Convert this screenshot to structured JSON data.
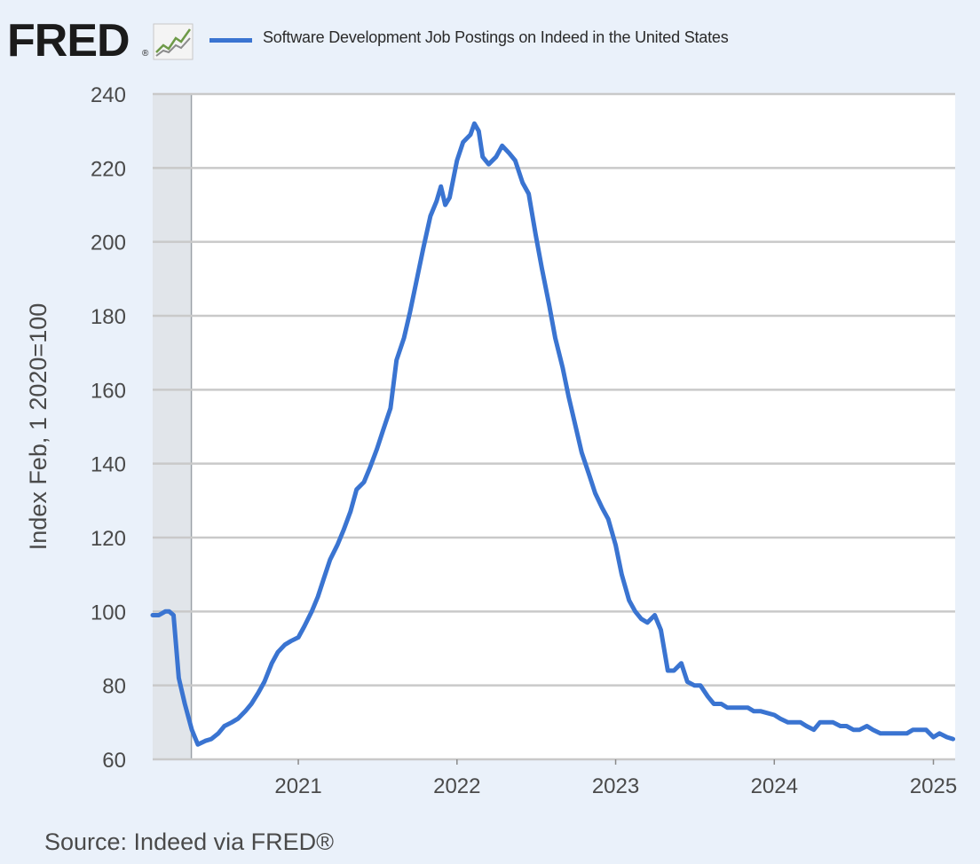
{
  "header": {
    "logo_text": "FRED",
    "logo_reg": "®"
  },
  "source": "Source: Indeed via FRED®",
  "chart_data": {
    "type": "line",
    "title": "",
    "ylabel": "Index Feb, 1 2020=100",
    "xlabel": "",
    "ylim": [
      60,
      240
    ],
    "yticks": [
      60,
      80,
      100,
      120,
      140,
      160,
      180,
      200,
      220,
      240
    ],
    "xlim": [
      "2020-02-01",
      "2025-02-20"
    ],
    "xticks": [
      {
        "date": "2021-01-01",
        "label": "2021"
      },
      {
        "date": "2022-01-01",
        "label": "2022"
      },
      {
        "date": "2023-01-01",
        "label": "2023"
      },
      {
        "date": "2024-01-01",
        "label": "2024"
      },
      {
        "date": "2025-01-01",
        "label": "2025"
      }
    ],
    "recession_shading": [
      [
        "2020-02-01",
        "2020-04-30"
      ]
    ],
    "grid": true,
    "legend_position": "top",
    "series": [
      {
        "name": "Software Development Job Postings on Indeed in the United States",
        "color": "#3a74d1",
        "points": [
          [
            "2020-02-01",
            99
          ],
          [
            "2020-02-15",
            99
          ],
          [
            "2020-03-01",
            100
          ],
          [
            "2020-03-10",
            100
          ],
          [
            "2020-03-20",
            99
          ],
          [
            "2020-04-01",
            82
          ],
          [
            "2020-04-15",
            75
          ],
          [
            "2020-05-01",
            68
          ],
          [
            "2020-05-15",
            64
          ],
          [
            "2020-06-01",
            65
          ],
          [
            "2020-06-15",
            65.5
          ],
          [
            "2020-07-01",
            67
          ],
          [
            "2020-07-15",
            69
          ],
          [
            "2020-08-01",
            70
          ],
          [
            "2020-08-15",
            71
          ],
          [
            "2020-09-01",
            73
          ],
          [
            "2020-09-15",
            75
          ],
          [
            "2020-10-01",
            78
          ],
          [
            "2020-10-15",
            81
          ],
          [
            "2020-11-01",
            86
          ],
          [
            "2020-11-15",
            89
          ],
          [
            "2020-12-01",
            91
          ],
          [
            "2020-12-15",
            92
          ],
          [
            "2021-01-01",
            93
          ],
          [
            "2021-01-15",
            96
          ],
          [
            "2021-02-01",
            100
          ],
          [
            "2021-02-15",
            104
          ],
          [
            "2021-03-01",
            109
          ],
          [
            "2021-03-15",
            114
          ],
          [
            "2021-04-01",
            118
          ],
          [
            "2021-04-15",
            122
          ],
          [
            "2021-05-01",
            127
          ],
          [
            "2021-05-15",
            133
          ],
          [
            "2021-06-01",
            135
          ],
          [
            "2021-06-15",
            139
          ],
          [
            "2021-07-01",
            144
          ],
          [
            "2021-07-15",
            149
          ],
          [
            "2021-08-01",
            155
          ],
          [
            "2021-08-15",
            168
          ],
          [
            "2021-09-01",
            174
          ],
          [
            "2021-09-15",
            181
          ],
          [
            "2021-10-01",
            190
          ],
          [
            "2021-10-15",
            198
          ],
          [
            "2021-11-01",
            207
          ],
          [
            "2021-11-15",
            211
          ],
          [
            "2021-11-25",
            215
          ],
          [
            "2021-12-05",
            210
          ],
          [
            "2021-12-15",
            212
          ],
          [
            "2022-01-01",
            222
          ],
          [
            "2022-01-15",
            227
          ],
          [
            "2022-02-01",
            229
          ],
          [
            "2022-02-10",
            232
          ],
          [
            "2022-02-20",
            230
          ],
          [
            "2022-03-01",
            223
          ],
          [
            "2022-03-15",
            221
          ],
          [
            "2022-04-01",
            223
          ],
          [
            "2022-04-15",
            226
          ],
          [
            "2022-05-01",
            224
          ],
          [
            "2022-05-15",
            222
          ],
          [
            "2022-06-01",
            216
          ],
          [
            "2022-06-15",
            213
          ],
          [
            "2022-07-01",
            202
          ],
          [
            "2022-07-15",
            193
          ],
          [
            "2022-08-01",
            183
          ],
          [
            "2022-08-15",
            174
          ],
          [
            "2022-09-01",
            166
          ],
          [
            "2022-09-15",
            158
          ],
          [
            "2022-10-01",
            150
          ],
          [
            "2022-10-15",
            143
          ],
          [
            "2022-11-01",
            137
          ],
          [
            "2022-11-15",
            132
          ],
          [
            "2022-12-01",
            128
          ],
          [
            "2022-12-15",
            125
          ],
          [
            "2023-01-01",
            118
          ],
          [
            "2023-01-15",
            110
          ],
          [
            "2023-02-01",
            103
          ],
          [
            "2023-02-15",
            100
          ],
          [
            "2023-03-01",
            98
          ],
          [
            "2023-03-15",
            97
          ],
          [
            "2023-04-01",
            99
          ],
          [
            "2023-04-15",
            95
          ],
          [
            "2023-05-01",
            84
          ],
          [
            "2023-05-15",
            84
          ],
          [
            "2023-06-01",
            86
          ],
          [
            "2023-06-15",
            81
          ],
          [
            "2023-07-01",
            80
          ],
          [
            "2023-07-15",
            80
          ],
          [
            "2023-08-01",
            77
          ],
          [
            "2023-08-15",
            75
          ],
          [
            "2023-09-01",
            75
          ],
          [
            "2023-09-15",
            74
          ],
          [
            "2023-10-01",
            74
          ],
          [
            "2023-10-15",
            74
          ],
          [
            "2023-11-01",
            74
          ],
          [
            "2023-11-15",
            73
          ],
          [
            "2023-12-01",
            73
          ],
          [
            "2024-01-01",
            72
          ],
          [
            "2024-01-15",
            71
          ],
          [
            "2024-02-01",
            70
          ],
          [
            "2024-02-15",
            70
          ],
          [
            "2024-03-01",
            70
          ],
          [
            "2024-03-15",
            69
          ],
          [
            "2024-04-01",
            68
          ],
          [
            "2024-04-15",
            70
          ],
          [
            "2024-05-01",
            70
          ],
          [
            "2024-05-15",
            70
          ],
          [
            "2024-06-01",
            69
          ],
          [
            "2024-06-15",
            69
          ],
          [
            "2024-07-01",
            68
          ],
          [
            "2024-07-15",
            68
          ],
          [
            "2024-08-01",
            69
          ],
          [
            "2024-08-15",
            68
          ],
          [
            "2024-09-01",
            67
          ],
          [
            "2024-09-15",
            67
          ],
          [
            "2024-10-01",
            67
          ],
          [
            "2024-10-15",
            67
          ],
          [
            "2024-11-01",
            67
          ],
          [
            "2024-11-15",
            68
          ],
          [
            "2024-12-01",
            68
          ],
          [
            "2024-12-15",
            68
          ],
          [
            "2025-01-01",
            66
          ],
          [
            "2025-01-15",
            67
          ],
          [
            "2025-02-01",
            66
          ],
          [
            "2025-02-15",
            65.5
          ]
        ]
      }
    ]
  }
}
